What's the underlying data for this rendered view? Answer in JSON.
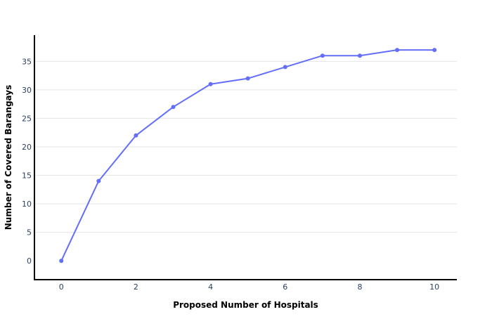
{
  "chart_data": {
    "type": "line",
    "title": "",
    "xlabel": "Proposed Number of Hospitals",
    "ylabel": "Number of Covered Barangays",
    "x": [
      0,
      1,
      2,
      3,
      4,
      5,
      6,
      7,
      8,
      9,
      10
    ],
    "series": [
      {
        "values": [
          0,
          14,
          22,
          27,
          31,
          32,
          34,
          36,
          36,
          37,
          37
        ],
        "color": "#636efa"
      }
    ],
    "xlim": [
      -0.72,
      10.6
    ],
    "ylim": [
      -3.3,
      39.6
    ],
    "xticks": [
      0,
      2,
      4,
      6,
      8,
      10
    ],
    "xtick_labels": [
      "0",
      "2",
      "4",
      "6",
      "8",
      "10"
    ],
    "yticks": [
      0,
      5,
      10,
      15,
      20,
      25,
      30,
      35
    ],
    "ytick_labels": [
      "0",
      "5",
      "10",
      "15",
      "20",
      "25",
      "30",
      "35"
    ],
    "grid": true,
    "grid_axis": "y",
    "legend": false,
    "marker": "circle"
  }
}
